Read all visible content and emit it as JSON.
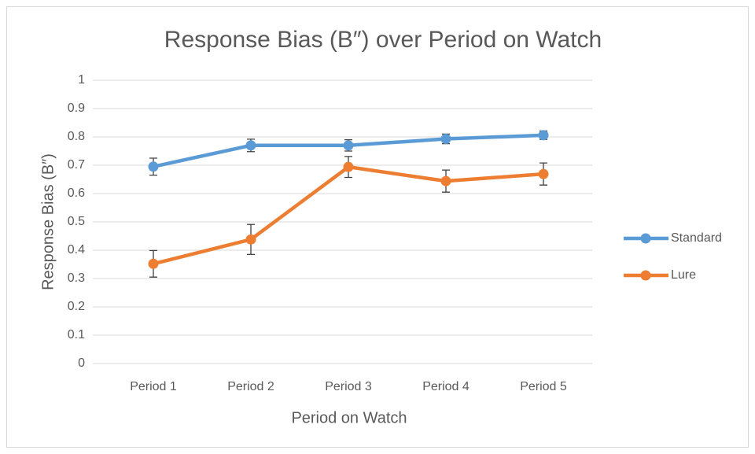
{
  "chart_data": {
    "type": "line",
    "title": "Response Bias (B″) over Period on Watch",
    "xlabel": "Period on Watch",
    "ylabel": "Response Bias (B″)",
    "categories": [
      "Period 1",
      "Period 2",
      "Period 3",
      "Period 4",
      "Period 5"
    ],
    "series": [
      {
        "name": "Standard",
        "color": "#5b9bd5",
        "values": [
          0.695,
          0.77,
          0.77,
          0.793,
          0.806
        ],
        "errors": [
          0.03,
          0.022,
          0.02,
          0.017,
          0.015
        ]
      },
      {
        "name": "Lure",
        "color": "#ed7d31",
        "values": [
          0.352,
          0.438,
          0.694,
          0.644,
          0.669
        ],
        "errors": [
          0.047,
          0.053,
          0.037,
          0.039,
          0.039
        ]
      }
    ],
    "ylim": [
      0,
      1
    ],
    "yticks": [
      0,
      0.1,
      0.2,
      0.3,
      0.4,
      0.5,
      0.6,
      0.7,
      0.8,
      0.9,
      1
    ],
    "grid": true,
    "legend": "right"
  }
}
